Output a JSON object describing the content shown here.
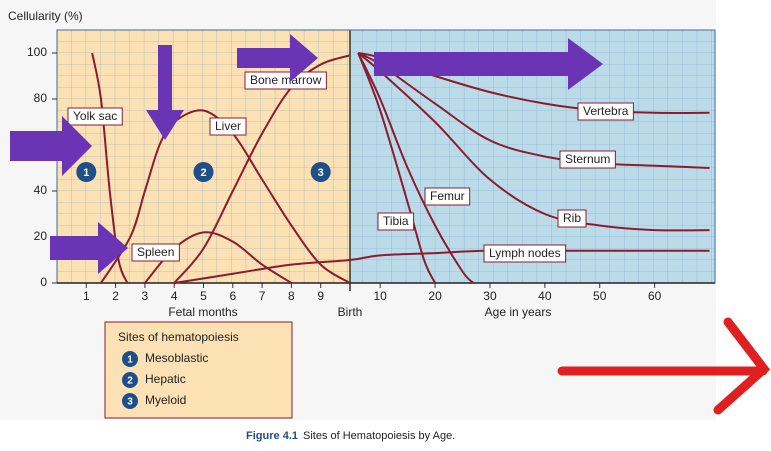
{
  "chart_data": {
    "type": "line",
    "title": "Figure 4.1",
    "subtitle": "Sites of Hematopoiesis by Age.",
    "ylabel": "Cellularity (%)",
    "ylim": [
      0,
      110
    ],
    "yticks": [
      0,
      20,
      40,
      80,
      100
    ],
    "x_segments": [
      {
        "label": "Fetal months",
        "xlim": [
          0,
          10
        ],
        "xticks": [
          1,
          2,
          3,
          4,
          5,
          6,
          7,
          8,
          9
        ],
        "color": "#fbe1b3"
      },
      {
        "label": "Age in years",
        "xlim": [
          4.5,
          71
        ],
        "xticks": [
          10,
          20,
          30,
          40,
          50,
          60
        ],
        "color": "#bcdbe9"
      }
    ],
    "birth_label": "Birth",
    "color": "#8a1c2e",
    "series": [
      {
        "name": "Yolk sac",
        "fetal_x": [
          1.2,
          1.5,
          1.8,
          2.1,
          2.4
        ],
        "fetal_values": [
          100,
          80,
          40,
          10,
          0
        ]
      },
      {
        "name": "Liver",
        "fetal_x": [
          1.5,
          2.5,
          3,
          3.5,
          4,
          5,
          6,
          7,
          8,
          9,
          10
        ],
        "fetal_values": [
          0,
          20,
          40,
          60,
          70,
          75,
          65,
          45,
          25,
          8,
          0
        ]
      },
      {
        "name": "Spleen",
        "fetal_x": [
          3,
          4,
          5,
          6,
          7,
          8
        ],
        "fetal_values": [
          0,
          15,
          22,
          18,
          8,
          0
        ]
      },
      {
        "name": "Bone marrow",
        "fetal_x": [
          4,
          5,
          6,
          7,
          8,
          9,
          10
        ],
        "fetal_values": [
          0,
          15,
          40,
          65,
          85,
          95,
          99
        ]
      },
      {
        "name": "Vertebra",
        "age_x": [
          6,
          10,
          20,
          30,
          40,
          50,
          60,
          70
        ],
        "age_values": [
          100,
          98,
          90,
          83,
          78,
          75,
          74,
          74
        ]
      },
      {
        "name": "Sternum",
        "age_x": [
          6,
          10,
          20,
          30,
          40,
          50,
          60,
          70
        ],
        "age_values": [
          100,
          95,
          78,
          62,
          55,
          52,
          51,
          50
        ]
      },
      {
        "name": "Rib",
        "age_x": [
          6,
          10,
          20,
          30,
          40,
          50,
          60,
          70
        ],
        "age_values": [
          100,
          92,
          70,
          45,
          30,
          25,
          23,
          23
        ]
      },
      {
        "name": "Femur",
        "age_x": [
          6,
          10,
          15,
          20,
          25,
          27
        ],
        "age_values": [
          100,
          80,
          50,
          25,
          5,
          0
        ]
      },
      {
        "name": "Tibia",
        "age_x": [
          6,
          10,
          15,
          18,
          20
        ],
        "age_values": [
          100,
          75,
          35,
          10,
          0
        ]
      },
      {
        "name": "Lymph nodes",
        "fetal_x": [
          4,
          6,
          8,
          10
        ],
        "fetal_values": [
          0,
          4,
          8,
          10
        ],
        "age_x": [
          10,
          20,
          30,
          50,
          70
        ],
        "age_values": [
          12,
          13,
          14,
          14,
          14
        ]
      }
    ],
    "regions": [
      {
        "number": "1",
        "name": "Mesoblastic",
        "x": 1
      },
      {
        "number": "2",
        "name": "Hepatic",
        "x": 5
      },
      {
        "number": "3",
        "name": "Myeloid",
        "x": 9
      }
    ],
    "legend_title": "Sites of hematopoiesis"
  }
}
